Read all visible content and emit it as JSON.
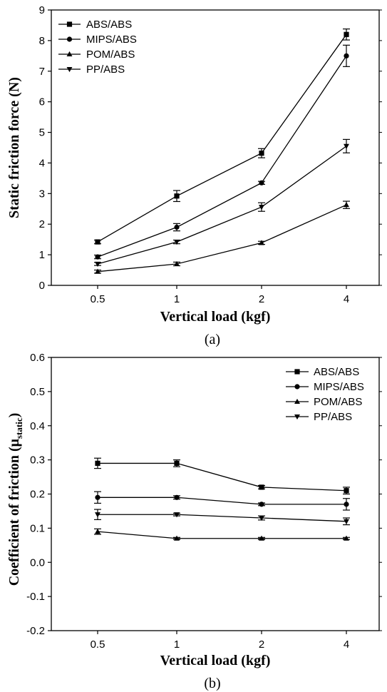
{
  "chart_data": [
    {
      "type": "line",
      "panel_label": "(a)",
      "xlabel": "Vertical load (kgf)",
      "ylabel": "Static friction force (N)",
      "categories": [
        "0.5",
        "1",
        "2",
        "4"
      ],
      "ylim": [
        0,
        9
      ],
      "yticks": [
        "0",
        "1",
        "2",
        "3",
        "4",
        "5",
        "6",
        "7",
        "8",
        "9"
      ],
      "legend_position": "top-left",
      "grid": false,
      "series": [
        {
          "name": "ABS/ABS",
          "marker": "square",
          "values": [
            1.42,
            2.92,
            4.32,
            8.2
          ],
          "errors": [
            0.06,
            0.18,
            0.15,
            0.18
          ]
        },
        {
          "name": "MIPS/ABS",
          "marker": "circle",
          "values": [
            0.93,
            1.9,
            3.35,
            7.5
          ],
          "errors": [
            0.06,
            0.12,
            0.05,
            0.35
          ]
        },
        {
          "name": "POM/ABS",
          "marker": "triangle-up",
          "values": [
            0.45,
            0.7,
            1.39,
            2.63
          ],
          "errors": [
            0.05,
            0.06,
            0.05,
            0.12
          ]
        },
        {
          "name": "PP/ABS",
          "marker": "triangle-down",
          "values": [
            0.7,
            1.42,
            2.56,
            4.55
          ],
          "errors": [
            0.05,
            0.06,
            0.14,
            0.22
          ]
        }
      ]
    },
    {
      "type": "line",
      "panel_label": "(b)",
      "xlabel": "Vertical load (kgf)",
      "ylabel": "Coefficient of friction (μ",
      "ylabel_sub": "static",
      "ylabel_close": ")",
      "categories": [
        "0.5",
        "1",
        "2",
        "4"
      ],
      "ylim": [
        -0.2,
        0.6
      ],
      "yticks": [
        "-0.2",
        "-0.1",
        "0.0",
        "0.1",
        "0.2",
        "0.3",
        "0.4",
        "0.5",
        "0.6"
      ],
      "legend_position": "top-right",
      "grid": false,
      "series": [
        {
          "name": "ABS/ABS",
          "marker": "square",
          "values": [
            0.29,
            0.29,
            0.22,
            0.21
          ],
          "errors": [
            0.015,
            0.01,
            0.005,
            0.01
          ]
        },
        {
          "name": "MIPS/ABS",
          "marker": "circle",
          "values": [
            0.19,
            0.19,
            0.17,
            0.17
          ],
          "errors": [
            0.017,
            0.005,
            0.004,
            0.017
          ]
        },
        {
          "name": "POM/ABS",
          "marker": "triangle-up",
          "values": [
            0.09,
            0.07,
            0.07,
            0.07
          ],
          "errors": [
            0.008,
            0.003,
            0.003,
            0.003
          ]
        },
        {
          "name": "PP/ABS",
          "marker": "triangle-down",
          "values": [
            0.14,
            0.14,
            0.13,
            0.12
          ],
          "errors": [
            0.015,
            0.004,
            0.006,
            0.01
          ]
        }
      ]
    }
  ]
}
